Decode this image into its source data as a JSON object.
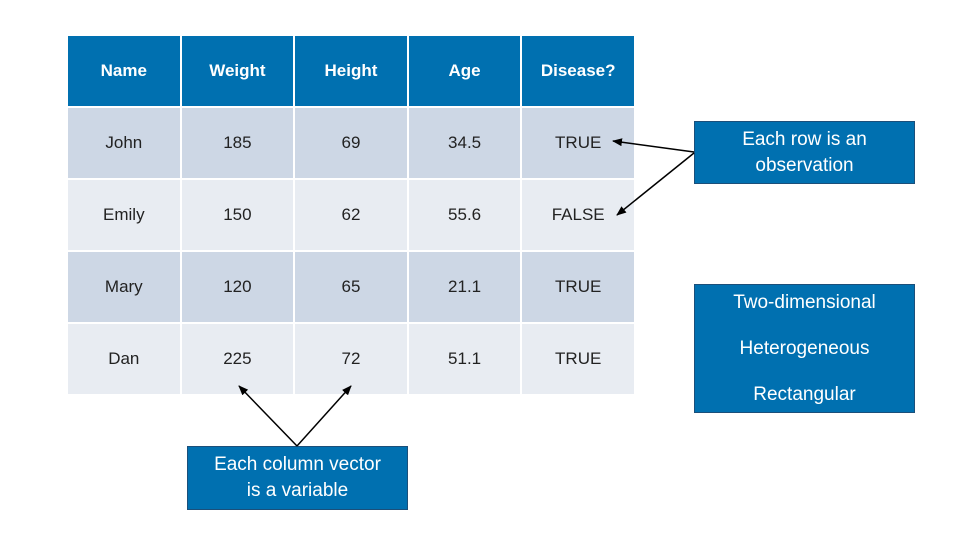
{
  "table": {
    "headers": [
      "Name",
      "Weight",
      "Height",
      "Age",
      "Disease?"
    ],
    "rows": [
      [
        "John",
        "185",
        "69",
        "34.5",
        "TRUE"
      ],
      [
        "Emily",
        "150",
        "62",
        "55.6",
        "FALSE"
      ],
      [
        "Mary",
        "120",
        "65",
        "21.1",
        "TRUE"
      ],
      [
        "Dan",
        "225",
        "72",
        "51.1",
        "TRUE"
      ]
    ]
  },
  "callouts": {
    "row": {
      "line1": "Each row is an",
      "line2": "observation"
    },
    "properties": [
      "Two-dimensional",
      "Heterogeneous",
      "Rectangular"
    ],
    "column": {
      "line1": "Each column vector",
      "line2": "is a variable"
    }
  },
  "colors": {
    "header": "#0070b0",
    "row_dark": "#cdd7e5",
    "row_light": "#e8ecf2",
    "callout": "#0070b0"
  }
}
